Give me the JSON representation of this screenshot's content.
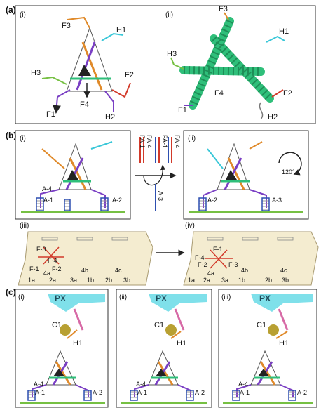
{
  "panels": {
    "a": "(a)",
    "b": "(b)",
    "c": "(c)"
  },
  "subpanels": {
    "i": "(i)",
    "ii": "(ii)",
    "iii": "(iii)",
    "iv": "(iv)"
  },
  "strands": {
    "F1": "F1",
    "F2": "F2",
    "F3": "F3",
    "F4": "F4",
    "H1": "H1",
    "H2": "H2",
    "H3": "H3"
  },
  "anchors": {
    "A1": "A-1",
    "A2": "A-2",
    "A3": "A-3",
    "A4": "A-4"
  },
  "duplex_labels": [
    "FA-1",
    "FA-4",
    "FA-1",
    "FA-4"
  ],
  "rotation": "120°",
  "origami_labels": {
    "F1": "F-1",
    "F2": "F-2",
    "F3": "F-3",
    "F4": "F-4",
    "4a": "4a",
    "sites": [
      "1a",
      "2a",
      "3a",
      "1b",
      "2b",
      "3b",
      "4b",
      "4c"
    ]
  },
  "px": "PX",
  "cargo": "C1",
  "colors": {
    "helix": "#2fbf7a",
    "orange": "#e08a2a",
    "cyan": "#3ac7d8",
    "purple": "#7a3fc4",
    "red": "#d23a2a",
    "blue": "#2d4fb0",
    "green": "#76c043",
    "pink": "#d76aa6",
    "origami": "#f4ecd0",
    "px": "#7fe0ea",
    "cargo": "#b8a032"
  }
}
